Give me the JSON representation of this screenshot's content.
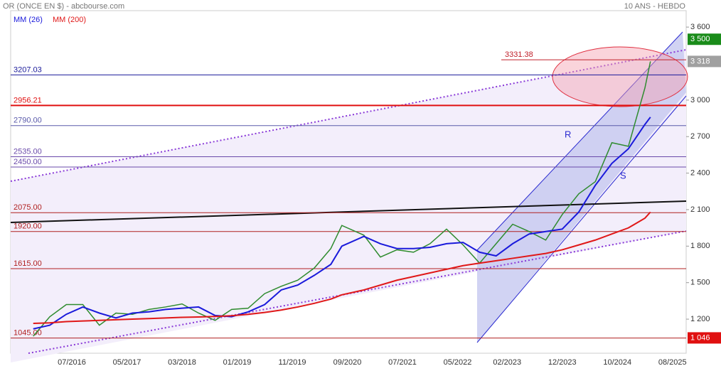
{
  "chart_data": {
    "type": "line",
    "title": "OR (ONCE EN $) - abcbourse.com",
    "subtitle": "10 ANS - HEBDO",
    "annotations": [
      "R",
      "S"
    ],
    "x": [
      "12/2015",
      "03/2016",
      "06/2016",
      "09/2016",
      "12/2016",
      "03/2017",
      "06/2017",
      "09/2017",
      "12/2017",
      "03/2018",
      "06/2018",
      "09/2018",
      "12/2018",
      "03/2019",
      "06/2019",
      "09/2019",
      "12/2019",
      "03/2020",
      "06/2020",
      "08/2020",
      "12/2020",
      "03/2021",
      "06/2021",
      "09/2021",
      "12/2021",
      "03/2022",
      "06/2022",
      "09/2022",
      "12/2022",
      "03/2023",
      "06/2023",
      "09/2023",
      "12/2023",
      "03/2024",
      "06/2024",
      "09/2024",
      "12/2024",
      "03/2025",
      "04/2025"
    ],
    "series": [
      {
        "color": "#2e8b2e",
        "values": [
          1060,
          1220,
          1320,
          1320,
          1150,
          1250,
          1240,
          1280,
          1300,
          1325,
          1250,
          1190,
          1280,
          1290,
          1410,
          1470,
          1520,
          1620,
          1780,
          1970,
          1890,
          1710,
          1770,
          1750,
          1820,
          1940,
          1810,
          1660,
          1820,
          1980,
          1920,
          1850,
          2060,
          2230,
          2330,
          2650,
          2620,
          3100,
          3318
        ]
      },
      {
        "name": "MM (26)",
        "color": "#1a1adb",
        "values": [
          1120,
          1150,
          1240,
          1300,
          1250,
          1210,
          1250,
          1260,
          1280,
          1290,
          1300,
          1230,
          1220,
          1260,
          1320,
          1440,
          1480,
          1560,
          1650,
          1800,
          1880,
          1820,
          1780,
          1780,
          1790,
          1820,
          1830,
          1750,
          1720,
          1820,
          1900,
          1920,
          1940,
          2080,
          2300,
          2480,
          2600,
          2800,
          2860
        ]
      },
      {
        "name": "MM (200)",
        "color": "#e01818",
        "values": [
          1165,
          1170,
          1180,
          1185,
          1190,
          1195,
          1200,
          1205,
          1210,
          1215,
          1218,
          1222,
          1228,
          1240,
          1255,
          1275,
          1300,
          1330,
          1365,
          1400,
          1440,
          1480,
          1520,
          1550,
          1580,
          1610,
          1640,
          1660,
          1680,
          1700,
          1720,
          1740,
          1770,
          1810,
          1850,
          1900,
          1950,
          2030,
          2080
        ]
      }
    ],
    "levels": [
      {
        "value": 3331.38,
        "label": "3331.38",
        "color": "#c0202a"
      },
      {
        "value": 3207.03,
        "label": "3207.03",
        "color": "#1a1a9a"
      },
      {
        "value": 2956.21,
        "label": "2956.21",
        "color": "#e01010"
      },
      {
        "value": 2790.0,
        "label": "2790.00",
        "color": "#5a5aaa"
      },
      {
        "value": 2535.0,
        "label": "2535.00",
        "color": "#6a4aaa"
      },
      {
        "value": 2450.0,
        "label": "2450.00",
        "color": "#6a4aaa"
      },
      {
        "value": 2075.0,
        "label": "2075.00",
        "color": "#b02020"
      },
      {
        "value": 1920.0,
        "label": "1920.00",
        "color": "#b02020"
      },
      {
        "value": 1615.0,
        "label": "1615.00",
        "color": "#b02020"
      },
      {
        "value": 1045.0,
        "label": "1045.00",
        "color": "#b02020"
      }
    ],
    "tags": [
      {
        "value": 3500,
        "label": "3 500",
        "color": "#1a8c1a"
      },
      {
        "value": 3318,
        "label": "3 318",
        "color": "#a0a0a0"
      },
      {
        "value": 1046,
        "label": "1 046",
        "color": "#e01010"
      }
    ],
    "ylim": [
      920,
      3735
    ],
    "yticks": [
      {
        "value": 1200,
        "label": "1 200"
      },
      {
        "value": 1500,
        "label": "1 500"
      },
      {
        "value": 1800,
        "label": "1 800"
      },
      {
        "value": 2100,
        "label": "2 100"
      },
      {
        "value": 2400,
        "label": "2 400"
      },
      {
        "value": 2700,
        "label": "2 700"
      },
      {
        "value": 3000,
        "label": "3 000"
      },
      {
        "value": 3600,
        "label": "3 600"
      }
    ],
    "xticks": [
      "07/2016",
      "05/2017",
      "03/2018",
      "01/2019",
      "11/2019",
      "09/2020",
      "07/2021",
      "05/2022",
      "02/2023",
      "12/2023",
      "10/2024",
      "08/2025"
    ]
  }
}
